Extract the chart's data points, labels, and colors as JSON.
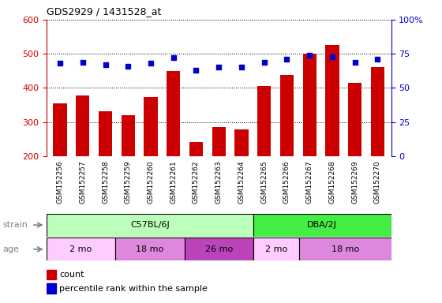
{
  "title": "GDS2929 / 1431528_at",
  "samples": [
    "GSM152256",
    "GSM152257",
    "GSM152258",
    "GSM152259",
    "GSM152260",
    "GSM152261",
    "GSM152262",
    "GSM152263",
    "GSM152264",
    "GSM152265",
    "GSM152266",
    "GSM152267",
    "GSM152268",
    "GSM152269",
    "GSM152270"
  ],
  "counts": [
    355,
    378,
    332,
    320,
    373,
    450,
    242,
    285,
    278,
    405,
    437,
    500,
    525,
    415,
    460
  ],
  "percentile_ranks": [
    68,
    69,
    67,
    66,
    68,
    72,
    63,
    65,
    65,
    69,
    71,
    74,
    73,
    69,
    71
  ],
  "ylim_left": [
    200,
    600
  ],
  "ylim_right": [
    0,
    100
  ],
  "yticks_left": [
    200,
    300,
    400,
    500,
    600
  ],
  "yticks_right": [
    0,
    25,
    50,
    75,
    100
  ],
  "ytick_right_labels": [
    "0",
    "25",
    "50",
    "75",
    "100%"
  ],
  "bar_color": "#cc0000",
  "dot_color": "#0000cc",
  "strain_groups": [
    {
      "label": "C57BL/6J",
      "start": 0,
      "end": 9,
      "color": "#bbffbb"
    },
    {
      "label": "DBA/2J",
      "start": 9,
      "end": 15,
      "color": "#44ee44"
    }
  ],
  "age_groups": [
    {
      "label": "2 mo",
      "start": 0,
      "end": 3,
      "color": "#ffccff"
    },
    {
      "label": "18 mo",
      "start": 3,
      "end": 6,
      "color": "#ee88ee"
    },
    {
      "label": "26 mo",
      "start": 6,
      "end": 9,
      "color": "#cc44cc"
    },
    {
      "label": "2 mo",
      "start": 9,
      "end": 11,
      "color": "#ffccff"
    },
    {
      "label": "18 mo",
      "start": 11,
      "end": 15,
      "color": "#ee88ee"
    }
  ],
  "legend_count_label": "count",
  "legend_pct_label": "percentile rank within the sample",
  "tick_area_color": "#d0d0d0",
  "background_color": "#ffffff"
}
